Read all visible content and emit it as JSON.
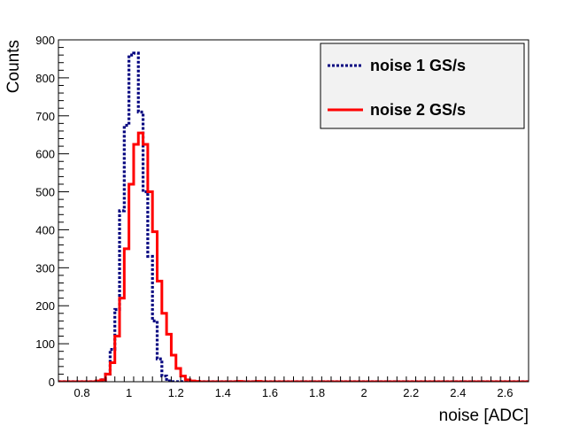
{
  "chart_data": {
    "type": "histogram",
    "xlabel": "noise [ADC]",
    "ylabel": "Counts",
    "xlim": [
      0.7,
      2.7
    ],
    "ylim": [
      0,
      900
    ],
    "x_ticks": [
      0.8,
      1,
      1.2,
      1.4,
      1.6,
      1.8,
      2,
      2.2,
      2.4,
      2.6
    ],
    "y_ticks": [
      0,
      100,
      200,
      300,
      400,
      500,
      600,
      700,
      800,
      900
    ],
    "x_tick_labels": [
      "0.8",
      "1",
      "1.2",
      "1.4",
      "1.6",
      "1.8",
      "2",
      "2.2",
      "2.4",
      "2.6"
    ],
    "y_tick_labels": [
      "0",
      "100",
      "200",
      "300",
      "400",
      "500",
      "600",
      "700",
      "800",
      "900"
    ],
    "bin_width": 0.02,
    "bin_start": 0.7,
    "grid": false,
    "legend_position": "top-right",
    "series": [
      {
        "name": "noise 1 GS/s",
        "color": "#00007f",
        "style": "dotted",
        "values": [
          0,
          0,
          0,
          0,
          0,
          0,
          0,
          0,
          0,
          5,
          20,
          85,
          190,
          450,
          675,
          860,
          865,
          710,
          500,
          330,
          160,
          60,
          15,
          2,
          0,
          0,
          0,
          0,
          0,
          0,
          0,
          0,
          0,
          0,
          0,
          0,
          0,
          0,
          0,
          0,
          0,
          0,
          0,
          0,
          0,
          0,
          0,
          0,
          0,
          0,
          0,
          0,
          0,
          0,
          0,
          0,
          0,
          0,
          0,
          0,
          0,
          0,
          0,
          0,
          0,
          0,
          0,
          0,
          0,
          0,
          0,
          0,
          0,
          0,
          0,
          0,
          0,
          0,
          0,
          0,
          0,
          0,
          0,
          0,
          0,
          0,
          0,
          0,
          0,
          0,
          0,
          0,
          0,
          0,
          0,
          0,
          0,
          0,
          0,
          0
        ]
      },
      {
        "name": "noise 2 GS/s",
        "color": "#ff0000",
        "style": "solid",
        "values": [
          0,
          0,
          0,
          0,
          0,
          0,
          0,
          0,
          2,
          5,
          20,
          50,
          120,
          220,
          350,
          520,
          625,
          655,
          625,
          500,
          395,
          265,
          180,
          125,
          70,
          35,
          15,
          5,
          2,
          1,
          0,
          0,
          0,
          0,
          0,
          0,
          0,
          0,
          1,
          0,
          0,
          0,
          1,
          0,
          0,
          0,
          0,
          0,
          0,
          0,
          0,
          0,
          0,
          0,
          0,
          0,
          0,
          0,
          0,
          0,
          0,
          0,
          0,
          0,
          0,
          0,
          0,
          0,
          0,
          0,
          0,
          0,
          0,
          0,
          0,
          0,
          0,
          0,
          0,
          0,
          0,
          0,
          0,
          0,
          0,
          0,
          0,
          0,
          0,
          0,
          0,
          0,
          0,
          0,
          0,
          0,
          0,
          0,
          0,
          0
        ]
      }
    ]
  }
}
